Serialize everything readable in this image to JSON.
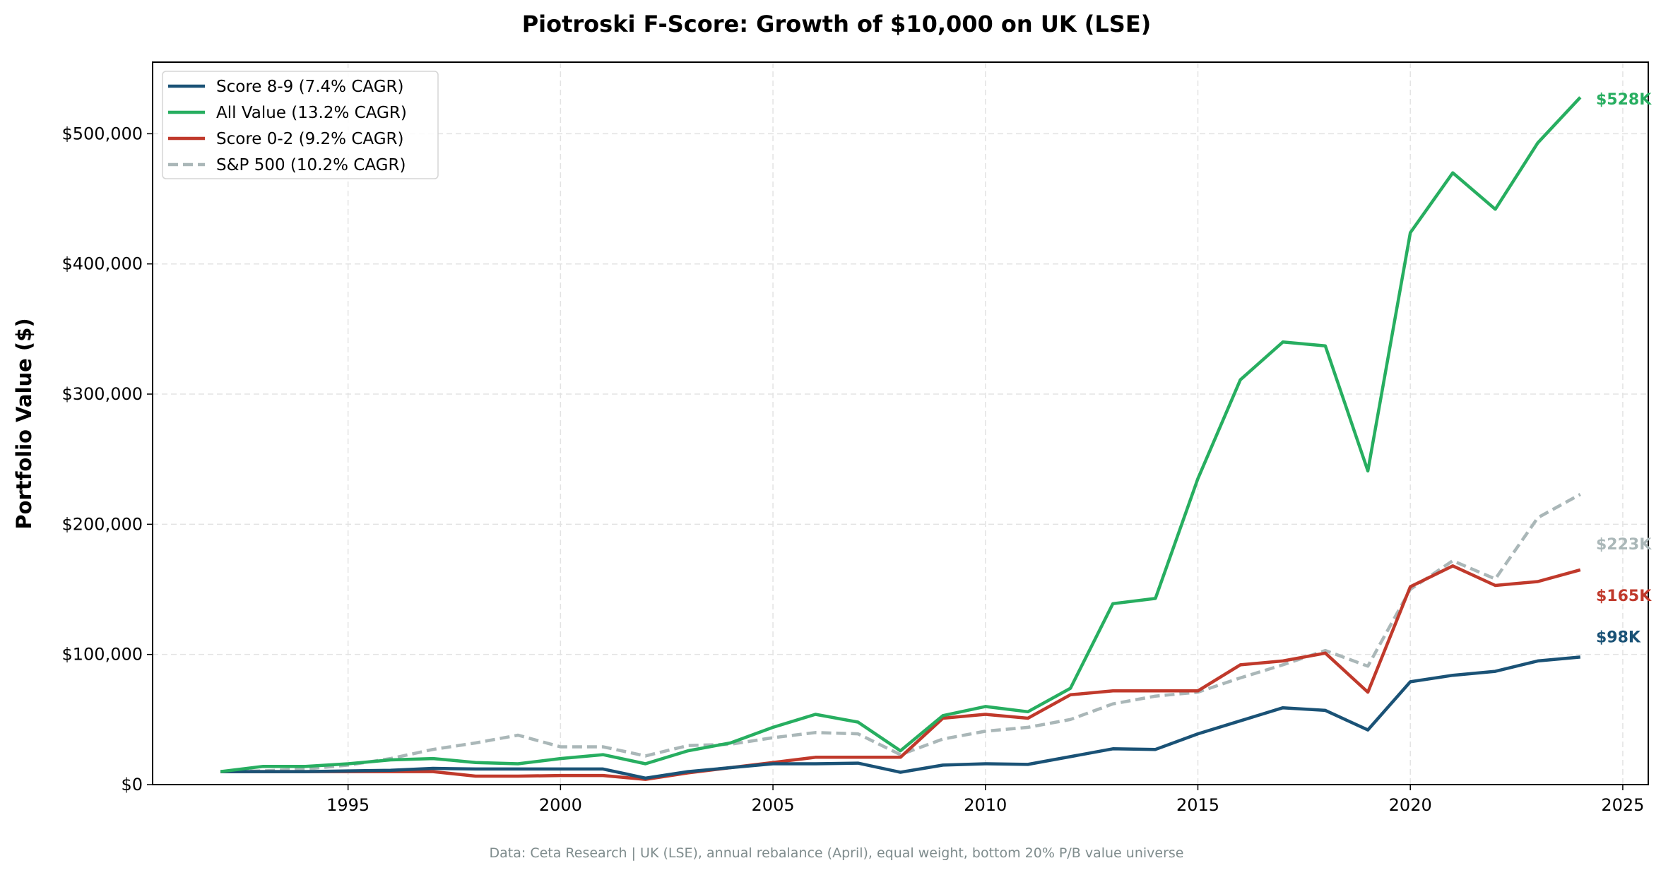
{
  "chart_data": {
    "type": "line",
    "title": "Piotroski F-Score: Growth of $10,000 on UK (LSE)",
    "xlabel": "",
    "ylabel": "Portfolio Value ($)",
    "footer": "Data: Ceta Research | UK (LSE), annual rebalance (April), equal weight, bottom 20% P/B value universe",
    "xlim": [
      1990.4,
      2025.6
    ],
    "ylim": [
      0,
      555000
    ],
    "x_ticks": [
      1995,
      2000,
      2005,
      2010,
      2015,
      2020,
      2025
    ],
    "y_ticks": [
      0,
      100000,
      200000,
      300000,
      400000,
      500000
    ],
    "y_tick_labels": [
      "$0",
      "$100,000",
      "$200,000",
      "$300,000",
      "$400,000",
      "$500,000"
    ],
    "grid": true,
    "legend_placement": "top-left",
    "x": [
      1992,
      1993,
      1994,
      1995,
      1996,
      1997,
      1998,
      1999,
      2000,
      2001,
      2002,
      2003,
      2004,
      2005,
      2006,
      2007,
      2008,
      2009,
      2010,
      2011,
      2012,
      2013,
      2014,
      2015,
      2016,
      2017,
      2018,
      2019,
      2020,
      2021,
      2022,
      2023,
      2024
    ],
    "series": [
      {
        "name": "Score 8-9 (7.4% CAGR)",
        "color": "#1a5276",
        "dashed": false,
        "end_label": "$98K",
        "values": [
          10000,
          10000,
          10000,
          10500,
          11000,
          12500,
          12000,
          12000,
          12000,
          12000,
          5000,
          10000,
          13000,
          16000,
          16000,
          16500,
          9500,
          15000,
          16000,
          15500,
          21500,
          27500,
          27000,
          39000,
          49000,
          59000,
          57000,
          42000,
          79000,
          84000,
          87000,
          95000,
          98000
        ]
      },
      {
        "name": "All Value (13.2% CAGR)",
        "color": "#27ae60",
        "dashed": false,
        "end_label": "$528K",
        "values": [
          10000,
          14000,
          14000,
          16000,
          19000,
          20000,
          17000,
          16000,
          20000,
          23000,
          16000,
          26000,
          32000,
          44000,
          54000,
          48000,
          26000,
          53000,
          60000,
          56000,
          74000,
          139000,
          143000,
          235000,
          311000,
          340000,
          337000,
          241000,
          424000,
          470000,
          442000,
          493000,
          528000
        ]
      },
      {
        "name": "Score 0-2 (9.2% CAGR)",
        "color": "#c0392b",
        "dashed": false,
        "end_label": "$165K",
        "values": [
          10000,
          10000,
          10000,
          10000,
          10000,
          10000,
          6500,
          6500,
          7000,
          7000,
          4000,
          9000,
          13000,
          17000,
          21000,
          21000,
          21000,
          51000,
          54000,
          51000,
          69000,
          72000,
          72000,
          72000,
          92000,
          95000,
          101000,
          71000,
          152000,
          168000,
          153000,
          156000,
          165000
        ]
      },
      {
        "name": "S&P 500 (10.2% CAGR)",
        "color": "#aab7b8",
        "dashed": true,
        "end_label": "$223K",
        "values": [
          10000,
          10500,
          12000,
          15000,
          20000,
          27000,
          32000,
          38000,
          29000,
          29000,
          22000,
          30000,
          31000,
          36000,
          40000,
          39000,
          23000,
          35000,
          41000,
          44000,
          50000,
          62000,
          68000,
          71000,
          82000,
          92000,
          103000,
          91000,
          150000,
          172000,
          158000,
          205000,
          223000
        ]
      }
    ]
  }
}
